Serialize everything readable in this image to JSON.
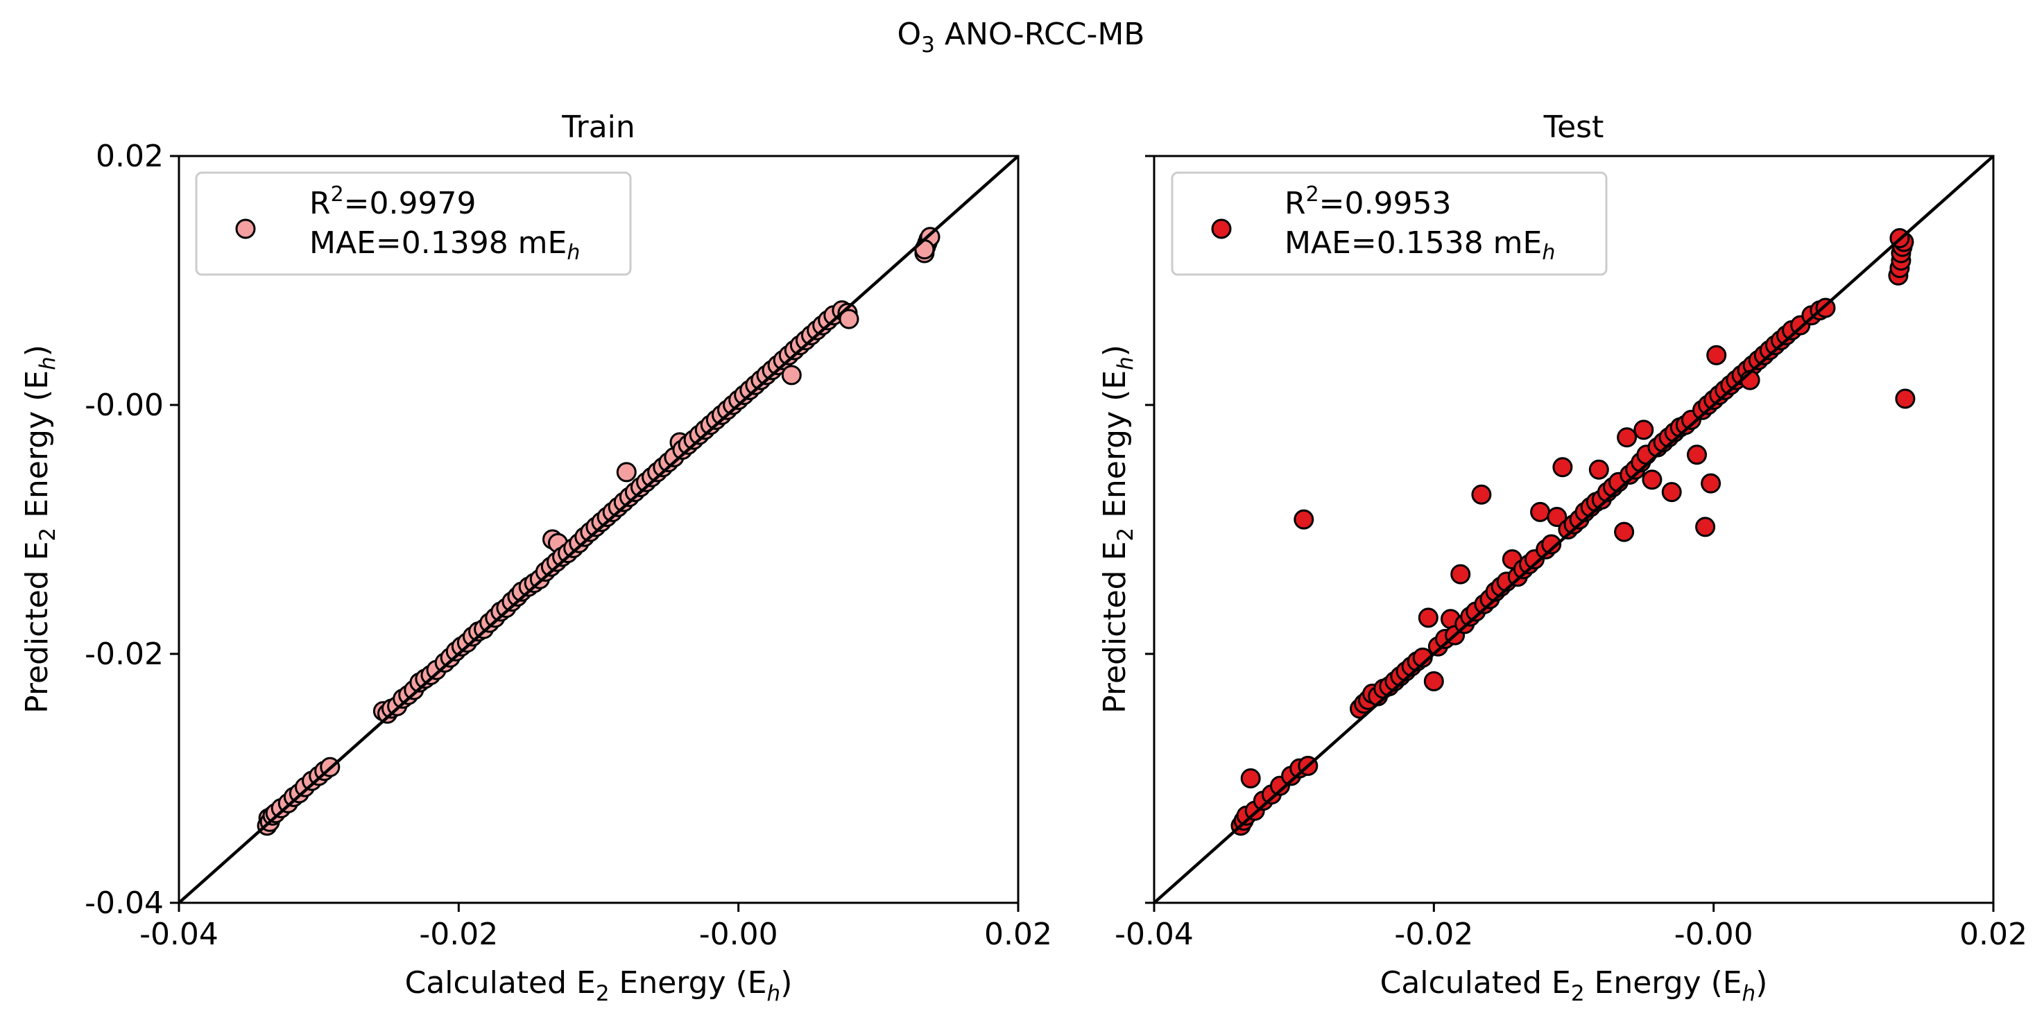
{
  "figure": {
    "title_main": "O",
    "title_sub": "3",
    "title_rest": " ANO-RCC-MB"
  },
  "colors": {
    "train_marker": "#f4a0a0",
    "test_marker": "#e01a1f",
    "marker_edge": "#000000",
    "diagonal": "#000000"
  },
  "chart_data": [
    {
      "type": "scatter",
      "title": "Train",
      "xlabel": {
        "pre": "Calculated E",
        "sub": "2",
        "mid": " Energy (E",
        "sub2": "h",
        "post": ")"
      },
      "ylabel": {
        "pre": "Predicted E",
        "sub": "2",
        "mid": " Energy (E",
        "sub2": "h",
        "post": ")"
      },
      "xlim": [
        -0.04,
        0.02
      ],
      "ylim": [
        -0.04,
        0.02
      ],
      "xticks": [
        "-0.04",
        "-0.02",
        "-0.00",
        "0.02"
      ],
      "yticks": [
        "-0.04",
        "-0.02",
        "-0.00",
        "0.02"
      ],
      "show_ytick_labels": true,
      "grid": false,
      "legend_position": "upper-left",
      "legend": {
        "r2_prefix": "R",
        "r2_sup": "2",
        "r2_value": "=0.9979",
        "mae_prefix": "MAE=0.1398 mE",
        "mae_sub": "h"
      },
      "r2": 0.9979,
      "mae_mEh": 0.1398,
      "reference_line": "y = x",
      "points": [
        [
          -0.0337,
          -0.0338
        ],
        [
          -0.0336,
          -0.0332
        ],
        [
          -0.0335,
          -0.0335
        ],
        [
          -0.0333,
          -0.033
        ],
        [
          -0.0331,
          -0.0328
        ],
        [
          -0.0327,
          -0.0324
        ],
        [
          -0.0322,
          -0.032
        ],
        [
          -0.0318,
          -0.0315
        ],
        [
          -0.0314,
          -0.0312
        ],
        [
          -0.031,
          -0.0307
        ],
        [
          -0.0305,
          -0.0302
        ],
        [
          -0.03,
          -0.0298
        ],
        [
          -0.0296,
          -0.0294
        ],
        [
          -0.0292,
          -0.0291
        ],
        [
          -0.0254,
          -0.0246
        ],
        [
          -0.0251,
          -0.0248
        ],
        [
          -0.0248,
          -0.0244
        ],
        [
          -0.0244,
          -0.0242
        ],
        [
          -0.024,
          -0.0236
        ],
        [
          -0.0236,
          -0.0233
        ],
        [
          -0.0232,
          -0.0229
        ],
        [
          -0.0228,
          -0.0223
        ],
        [
          -0.0224,
          -0.022
        ],
        [
          -0.022,
          -0.0217
        ],
        [
          -0.0216,
          -0.0213
        ],
        [
          -0.021,
          -0.0207
        ],
        [
          -0.0206,
          -0.0203
        ],
        [
          -0.0202,
          -0.0198
        ],
        [
          -0.0198,
          -0.0194
        ],
        [
          -0.0194,
          -0.0191
        ],
        [
          -0.019,
          -0.0186
        ],
        [
          -0.0186,
          -0.0182
        ],
        [
          -0.0182,
          -0.018
        ],
        [
          -0.0178,
          -0.0175
        ],
        [
          -0.0174,
          -0.0171
        ],
        [
          -0.017,
          -0.0166
        ],
        [
          -0.0166,
          -0.0163
        ],
        [
          -0.0162,
          -0.0158
        ],
        [
          -0.0158,
          -0.0154
        ],
        [
          -0.0155,
          -0.015
        ],
        [
          -0.015,
          -0.0146
        ],
        [
          -0.0146,
          -0.0143
        ],
        [
          -0.0142,
          -0.014
        ],
        [
          -0.0138,
          -0.0134
        ],
        [
          -0.0134,
          -0.013
        ],
        [
          -0.013,
          -0.0126
        ],
        [
          -0.0133,
          -0.0108
        ],
        [
          -0.0129,
          -0.0111
        ],
        [
          -0.0126,
          -0.0122
        ],
        [
          -0.0122,
          -0.0119
        ],
        [
          -0.0118,
          -0.0115
        ],
        [
          -0.0114,
          -0.0111
        ],
        [
          -0.011,
          -0.0106
        ],
        [
          -0.0106,
          -0.0102
        ],
        [
          -0.0102,
          -0.0098
        ],
        [
          -0.0098,
          -0.0094
        ],
        [
          -0.0094,
          -0.009
        ],
        [
          -0.009,
          -0.0086
        ],
        [
          -0.0086,
          -0.0082
        ],
        [
          -0.0082,
          -0.0078
        ],
        [
          -0.008,
          -0.0054
        ],
        [
          -0.0078,
          -0.0074
        ],
        [
          -0.0074,
          -0.007
        ],
        [
          -0.007,
          -0.0066
        ],
        [
          -0.0066,
          -0.0062
        ],
        [
          -0.0062,
          -0.0058
        ],
        [
          -0.0058,
          -0.0054
        ],
        [
          -0.0054,
          -0.005
        ],
        [
          -0.005,
          -0.0046
        ],
        [
          -0.0046,
          -0.0042
        ],
        [
          -0.0042,
          -0.003
        ],
        [
          -0.004,
          -0.0036
        ],
        [
          -0.0036,
          -0.0032
        ],
        [
          -0.0032,
          -0.0028
        ],
        [
          -0.0028,
          -0.0024
        ],
        [
          -0.0024,
          -0.002
        ],
        [
          -0.002,
          -0.0016
        ],
        [
          -0.0016,
          -0.0012
        ],
        [
          -0.0012,
          -0.0008
        ],
        [
          -0.0008,
          -0.0004
        ],
        [
          -0.0004,
          0.0
        ],
        [
          0.0,
          0.0004
        ],
        [
          0.0004,
          0.0008
        ],
        [
          0.0008,
          0.0012
        ],
        [
          0.0012,
          0.0016
        ],
        [
          0.0016,
          0.002
        ],
        [
          0.002,
          0.0024
        ],
        [
          0.0024,
          0.0028
        ],
        [
          0.0028,
          0.0032
        ],
        [
          0.0032,
          0.0036
        ],
        [
          0.0036,
          0.004
        ],
        [
          0.004,
          0.0044
        ],
        [
          0.0044,
          0.0048
        ],
        [
          0.0048,
          0.0052
        ],
        [
          0.0052,
          0.0056
        ],
        [
          0.0056,
          0.006
        ],
        [
          0.006,
          0.0064
        ],
        [
          0.0064,
          0.0068
        ],
        [
          0.0068,
          0.0072
        ],
        [
          0.0074,
          0.0076
        ],
        [
          0.0078,
          0.0074
        ],
        [
          0.0079,
          0.0069
        ],
        [
          0.0038,
          0.0024
        ],
        [
          0.0133,
          0.0122
        ],
        [
          0.0134,
          0.0127
        ],
        [
          0.0135,
          0.013
        ],
        [
          0.0136,
          0.0133
        ],
        [
          0.0137,
          0.0135
        ],
        [
          0.0133,
          0.0125
        ]
      ]
    },
    {
      "type": "scatter",
      "title": "Test",
      "xlabel": {
        "pre": "Calculated E",
        "sub": "2",
        "mid": " Energy (E",
        "sub2": "h",
        "post": ")"
      },
      "ylabel": {
        "pre": "Predicted E",
        "sub": "2",
        "mid": " Energy (E",
        "sub2": "h",
        "post": ")"
      },
      "xlim": [
        -0.04,
        0.02
      ],
      "ylim": [
        -0.04,
        0.02
      ],
      "xticks": [
        "-0.04",
        "-0.02",
        "-0.00",
        "0.02"
      ],
      "yticks": [
        "",
        "",
        "",
        ""
      ],
      "show_ytick_labels": false,
      "grid": false,
      "legend_position": "upper-left",
      "legend": {
        "r2_prefix": "R",
        "r2_sup": "2",
        "r2_value": "=0.9953",
        "mae_prefix": "MAE=0.1538 mE",
        "mae_sub": "h"
      },
      "r2": 0.9953,
      "mae_mEh": 0.1538,
      "reference_line": "y = x",
      "points": [
        [
          -0.0338,
          -0.0338
        ],
        [
          -0.0336,
          -0.0334
        ],
        [
          -0.0334,
          -0.033
        ],
        [
          -0.0331,
          -0.03
        ],
        [
          -0.0328,
          -0.0326
        ],
        [
          -0.0322,
          -0.0318
        ],
        [
          -0.0316,
          -0.0313
        ],
        [
          -0.031,
          -0.0306
        ],
        [
          -0.0302,
          -0.0298
        ],
        [
          -0.0296,
          -0.0292
        ],
        [
          -0.029,
          -0.029
        ],
        [
          -0.0293,
          -0.0092
        ],
        [
          -0.0253,
          -0.0244
        ],
        [
          -0.025,
          -0.024
        ],
        [
          -0.0247,
          -0.0237
        ],
        [
          -0.0244,
          -0.0232
        ],
        [
          -0.024,
          -0.0234
        ],
        [
          -0.0236,
          -0.0228
        ],
        [
          -0.0232,
          -0.0226
        ],
        [
          -0.0228,
          -0.0222
        ],
        [
          -0.0224,
          -0.0218
        ],
        [
          -0.022,
          -0.0214
        ],
        [
          -0.0216,
          -0.021
        ],
        [
          -0.0212,
          -0.0206
        ],
        [
          -0.0208,
          -0.0203
        ],
        [
          -0.0204,
          -0.0171
        ],
        [
          -0.02,
          -0.0222
        ],
        [
          -0.0197,
          -0.0194
        ],
        [
          -0.0192,
          -0.0188
        ],
        [
          -0.0188,
          -0.0172
        ],
        [
          -0.0185,
          -0.0185
        ],
        [
          -0.0181,
          -0.0136
        ],
        [
          -0.0178,
          -0.0176
        ],
        [
          -0.0174,
          -0.017
        ],
        [
          -0.017,
          -0.0166
        ],
        [
          -0.0166,
          -0.0072
        ],
        [
          -0.0164,
          -0.016
        ],
        [
          -0.016,
          -0.0156
        ],
        [
          -0.0156,
          -0.015
        ],
        [
          -0.0152,
          -0.0146
        ],
        [
          -0.0148,
          -0.0142
        ],
        [
          -0.0144,
          -0.0124
        ],
        [
          -0.014,
          -0.0138
        ],
        [
          -0.0136,
          -0.0132
        ],
        [
          -0.0132,
          -0.0128
        ],
        [
          -0.0128,
          -0.0124
        ],
        [
          -0.0124,
          -0.0086
        ],
        [
          -0.012,
          -0.0116
        ],
        [
          -0.0116,
          -0.0112
        ],
        [
          -0.0112,
          -0.009
        ],
        [
          -0.0108,
          -0.005
        ],
        [
          -0.0104,
          -0.01
        ],
        [
          -0.01,
          -0.0096
        ],
        [
          -0.0096,
          -0.0092
        ],
        [
          -0.0092,
          -0.0086
        ],
        [
          -0.0088,
          -0.0082
        ],
        [
          -0.0084,
          -0.0078
        ],
        [
          -0.0082,
          -0.0052
        ],
        [
          -0.008,
          -0.0076
        ],
        [
          -0.0076,
          -0.007
        ],
        [
          -0.0072,
          -0.0066
        ],
        [
          -0.0068,
          -0.0062
        ],
        [
          -0.0064,
          -0.0102
        ],
        [
          -0.0062,
          -0.0026
        ],
        [
          -0.006,
          -0.0056
        ],
        [
          -0.0056,
          -0.0052
        ],
        [
          -0.0052,
          -0.0046
        ],
        [
          -0.0048,
          -0.004
        ],
        [
          -0.0044,
          -0.006
        ],
        [
          -0.004,
          -0.0034
        ],
        [
          -0.0036,
          -0.003
        ],
        [
          -0.0032,
          -0.0026
        ],
        [
          -0.003,
          -0.007
        ],
        [
          -0.0028,
          -0.0022
        ],
        [
          -0.0024,
          -0.0018
        ],
        [
          -0.002,
          -0.0016
        ],
        [
          -0.0016,
          -0.0012
        ],
        [
          -0.0012,
          -0.004
        ],
        [
          -0.0008,
          -0.0004
        ],
        [
          -0.0004,
          0.0
        ],
        [
          -0.0006,
          -0.0098
        ],
        [
          -0.0002,
          -0.0063
        ],
        [
          0.0,
          0.0004
        ],
        [
          0.0002,
          0.004
        ],
        [
          0.0004,
          0.0008
        ],
        [
          0.0008,
          0.0012
        ],
        [
          0.0012,
          0.0016
        ],
        [
          0.0016,
          0.002
        ],
        [
          0.002,
          0.0024
        ],
        [
          0.0024,
          0.0028
        ],
        [
          0.0028,
          0.0032
        ],
        [
          0.0032,
          0.0036
        ],
        [
          0.0036,
          0.004
        ],
        [
          0.004,
          0.0044
        ],
        [
          0.0044,
          0.0048
        ],
        [
          0.0048,
          0.0052
        ],
        [
          0.0052,
          0.0056
        ],
        [
          0.0056,
          0.006
        ],
        [
          0.0062,
          0.0064
        ],
        [
          0.007,
          0.0072
        ],
        [
          0.0076,
          0.0076
        ],
        [
          0.008,
          0.0078
        ],
        [
          0.0026,
          0.002
        ],
        [
          -0.005,
          -0.002
        ],
        [
          0.0132,
          0.0104
        ],
        [
          0.0133,
          0.011
        ],
        [
          0.0134,
          0.0116
        ],
        [
          0.0134,
          0.0122
        ],
        [
          0.0135,
          0.0127
        ],
        [
          0.0136,
          0.0131
        ],
        [
          0.0133,
          0.0134
        ],
        [
          0.0137,
          0.0005
        ]
      ]
    }
  ]
}
